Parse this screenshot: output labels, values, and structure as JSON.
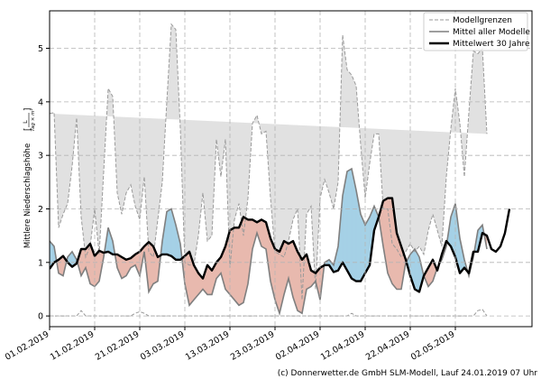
{
  "chart_data": {
    "type": "area",
    "title": "",
    "xlabel": "",
    "ylabel": "Mittlere Niederschlagshöhe",
    "ylabel_unit": "[L/(Tag×m²)]",
    "ylabel_unit_num": "L",
    "ylabel_unit_den": "Tag × m²",
    "ylim": [
      -0.2,
      5.7
    ],
    "yticks": [
      0,
      1,
      2,
      3,
      4,
      5
    ],
    "xlim": [
      0,
      107
    ],
    "xtick_days": [
      0,
      10,
      20,
      30,
      40,
      50,
      60,
      70,
      80,
      90
    ],
    "xtick_labels": [
      "01.02.2019",
      "11.02.2019",
      "21.02.2019",
      "03.03.2019",
      "13.03.2019",
      "23.03.2019",
      "02.04.2019",
      "12.04.2019",
      "22.04.2019",
      "02.05.2019"
    ],
    "grid": true,
    "legend_position": "top-right",
    "legend": [
      {
        "key": "bounds",
        "label": "Modellgrenzen"
      },
      {
        "key": "ensemble",
        "label": "Mittel aller Modelle"
      },
      {
        "key": "clim",
        "label": "Mittelwert 30 Jahre"
      }
    ],
    "colors": {
      "envelope_fill": "#e1e1e1",
      "bounds_line": "#9a9a9a",
      "ensemble_line": "#7f7f7f",
      "clim_line": "#000000",
      "wetter_fill": "#a5d1e6",
      "drier_fill": "#e8b9ae",
      "grid": "#b5b5b5"
    },
    "series": [
      {
        "name": "Obere Modellgrenze",
        "key": "upper",
        "values": [
          3.78,
          3.8,
          1.65,
          1.9,
          2.1,
          2.8,
          3.7,
          1.85,
          1.1,
          1.3,
          2.0,
          1.15,
          2.7,
          4.25,
          4.1,
          2.3,
          1.9,
          2.3,
          2.45,
          2.05,
          1.8,
          2.6,
          1.2,
          1.1,
          1.8,
          2.5,
          4.0,
          5.45,
          5.35,
          3.5,
          1.0,
          0.95,
          0.95,
          1.5,
          2.3,
          1.4,
          1.5,
          3.3,
          2.6,
          3.3,
          0.9,
          1.8,
          2.1,
          1.5,
          2.2,
          3.6,
          3.75,
          3.4,
          3.45,
          2.2,
          1.2,
          1.15,
          1.1,
          1.4,
          1.8,
          2.0,
          0.3,
          1.9,
          2.05,
          0.5,
          2.2,
          2.55,
          2.3,
          2.0,
          2.5,
          5.25,
          4.6,
          4.5,
          4.3,
          3.2,
          2.2,
          2.85,
          3.4,
          3.4,
          2.0,
          2.0,
          1.35,
          1.25,
          1.1,
          1.2,
          1.35,
          1.2,
          1.3,
          1.15,
          1.6,
          1.9,
          1.6,
          1.3,
          2.6,
          3.5,
          4.25,
          3.6,
          2.6,
          3.8,
          4.95,
          4.9,
          5.0,
          3.4
        ]
      },
      {
        "name": "Untere Modellgrenze",
        "key": "lower",
        "values": [
          0,
          0,
          0,
          0,
          0,
          0,
          0,
          0.1,
          0,
          0,
          0,
          0,
          0,
          0,
          0,
          0,
          0,
          0,
          0,
          0.05,
          0.08,
          0.05,
          0,
          0,
          0,
          0,
          0,
          0,
          0,
          0,
          0,
          0,
          0,
          0,
          0,
          0,
          0,
          0,
          0,
          0,
          0,
          0,
          0,
          0,
          0,
          0,
          0,
          0,
          0,
          0,
          0,
          0,
          0,
          0,
          0,
          0,
          0,
          0,
          0,
          0,
          0,
          0,
          0,
          0,
          0,
          0,
          0,
          0.05,
          0,
          0,
          0,
          0,
          0,
          0,
          0,
          0,
          0,
          0,
          0,
          0,
          0,
          0,
          0,
          0,
          0,
          0,
          0,
          0,
          0,
          0,
          0,
          0,
          0,
          0,
          0,
          0.1,
          0.12,
          0
        ]
      },
      {
        "name": "Mittel aller Modelle",
        "key": "ensemble",
        "values": [
          1.4,
          1.3,
          0.8,
          0.75,
          1.1,
          1.2,
          1.05,
          0.75,
          0.9,
          0.6,
          0.55,
          0.65,
          1.1,
          1.65,
          1.4,
          0.9,
          0.7,
          0.75,
          0.9,
          0.95,
          0.75,
          1.2,
          0.45,
          0.6,
          0.65,
          1.4,
          1.95,
          2.0,
          1.7,
          1.35,
          0.6,
          0.2,
          0.3,
          0.4,
          0.5,
          0.4,
          0.4,
          0.7,
          0.8,
          0.5,
          0.4,
          0.3,
          0.2,
          0.25,
          0.6,
          1.25,
          1.55,
          1.3,
          1.25,
          0.65,
          0.3,
          0.05,
          0.4,
          0.7,
          0.35,
          0.1,
          0.05,
          0.5,
          0.55,
          0.65,
          0.3,
          1.0,
          1.05,
          0.95,
          1.3,
          2.25,
          2.7,
          2.75,
          2.35,
          1.9,
          1.7,
          1.85,
          2.05,
          1.85,
          1.3,
          0.8,
          0.6,
          0.5,
          0.5,
          1.0,
          1.15,
          1.25,
          1.1,
          0.75,
          0.55,
          0.65,
          0.9,
          1.05,
          1.3,
          1.85,
          2.1,
          1.45,
          1.05,
          0.75,
          1.1,
          1.6,
          1.7,
          1.25
        ]
      },
      {
        "name": "Mittelwert 30 Jahre",
        "key": "clim",
        "values": [
          0.88,
          1.0,
          1.05,
          1.12,
          1.0,
          0.92,
          0.98,
          1.25,
          1.25,
          1.35,
          1.12,
          1.22,
          1.18,
          1.2,
          1.15,
          1.15,
          1.1,
          1.05,
          1.08,
          1.15,
          1.2,
          1.3,
          1.38,
          1.3,
          1.1,
          1.15,
          1.15,
          1.12,
          1.05,
          1.05,
          1.12,
          1.2,
          0.95,
          0.8,
          0.7,
          0.95,
          0.85,
          1.0,
          1.1,
          1.3,
          1.6,
          1.65,
          1.65,
          1.85,
          1.8,
          1.8,
          1.75,
          1.8,
          1.75,
          1.45,
          1.25,
          1.2,
          1.4,
          1.35,
          1.4,
          1.2,
          1.05,
          1.15,
          0.85,
          0.8,
          0.9,
          0.95,
          0.95,
          0.82,
          0.85,
          1.0,
          0.85,
          0.7,
          0.65,
          0.65,
          0.8,
          0.95,
          1.6,
          1.85,
          2.15,
          2.2,
          2.2,
          1.55,
          1.3,
          1.05,
          0.75,
          0.5,
          0.45,
          0.75,
          0.9,
          1.05,
          0.85,
          1.15,
          1.4,
          1.3,
          1.1,
          0.8,
          0.9,
          0.8,
          1.2,
          1.2,
          1.55,
          1.5,
          1.25,
          1.2,
          1.3,
          1.55,
          2.0
        ]
      }
    ],
    "annotations": []
  },
  "footer": "(c) Donnerwetter.de GmbH SLM-Modell, Lauf 24.01.2019 07 Uhr"
}
